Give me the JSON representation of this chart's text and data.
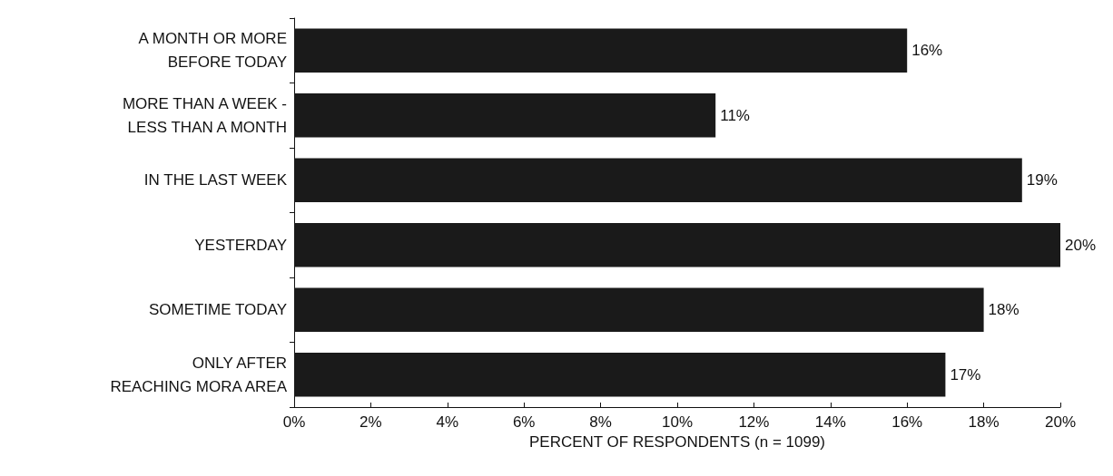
{
  "chart_data": {
    "type": "bar",
    "orientation": "horizontal",
    "xlabel": "PERCENT OF RESPONDENTS (n = 1099)",
    "categories": [
      "A MONTH OR MORE\nBEFORE TODAY",
      "MORE THAN A WEEK -\nLESS THAN A MONTH",
      "IN THE LAST WEEK",
      "YESTERDAY",
      "SOMETIME TODAY",
      "ONLY AFTER\nREACHING MORA AREA"
    ],
    "values": [
      16,
      11,
      19,
      20,
      18,
      17
    ],
    "value_labels": [
      "16%",
      "11%",
      "19%",
      "20%",
      "18%",
      "17%"
    ],
    "color": "#1a1a1a",
    "xlim": [
      0,
      20
    ],
    "xticks": [
      {
        "value": 0,
        "label": "0%"
      },
      {
        "value": 2,
        "label": "2%"
      },
      {
        "value": 4,
        "label": "4%"
      },
      {
        "value": 6,
        "label": "6%"
      },
      {
        "value": 8,
        "label": "8%"
      },
      {
        "value": 10,
        "label": "10%"
      },
      {
        "value": 12,
        "label": "12%"
      },
      {
        "value": 14,
        "label": "14%"
      },
      {
        "value": 16,
        "label": "16%"
      },
      {
        "value": 18,
        "label": "18%"
      },
      {
        "value": 20,
        "label": "20%"
      }
    ],
    "grid": false
  }
}
